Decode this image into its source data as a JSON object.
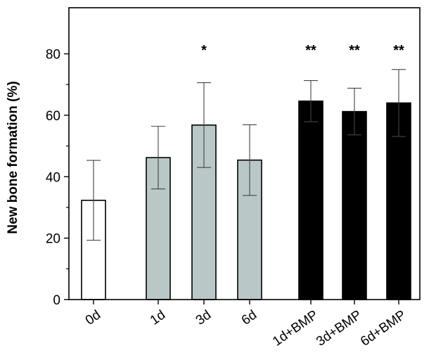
{
  "chart_data": {
    "type": "bar",
    "title": "",
    "xlabel": "",
    "ylabel": "New bone formation (%)",
    "ylim": [
      0,
      95
    ],
    "yticks": [
      0,
      20,
      40,
      60,
      80
    ],
    "grid": false,
    "legend": "none",
    "categories": [
      "0d",
      "1d",
      "3d",
      "6d",
      "1d+BMP",
      "3d+BMP",
      "6d+BMP"
    ],
    "values": [
      32.3,
      46.2,
      56.8,
      45.4,
      64.6,
      61.2,
      64.0
    ],
    "errors": [
      13.0,
      10.2,
      13.8,
      11.5,
      6.7,
      7.6,
      10.9
    ],
    "annotations": [
      "",
      "",
      "*",
      "",
      "**",
      "**",
      "**"
    ],
    "bar_colors": [
      "#ffffff",
      "#b9c8c6",
      "#b9c8c6",
      "#b9c8c6",
      "#000000",
      "#000000",
      "#000000"
    ]
  }
}
